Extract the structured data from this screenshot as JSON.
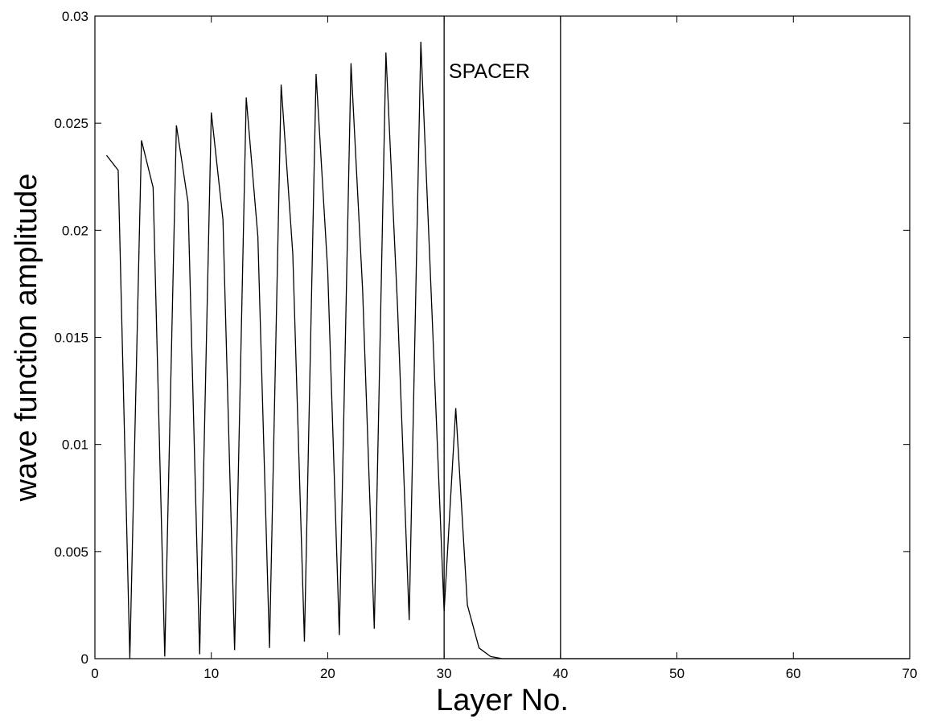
{
  "chart_data": {
    "type": "line",
    "title": "",
    "xlabel": "Layer No.",
    "ylabel": "wave function amplitude",
    "xlim": [
      0,
      70
    ],
    "ylim": [
      0,
      0.03
    ],
    "x_ticks": [
      0,
      10,
      20,
      30,
      40,
      50,
      60,
      70
    ],
    "y_ticks": [
      0,
      0.005,
      0.01,
      0.015,
      0.02,
      0.025,
      0.03
    ],
    "x_tick_labels": [
      "0",
      "10",
      "20",
      "30",
      "40",
      "50",
      "60",
      "70"
    ],
    "y_tick_labels": [
      "0",
      "0.005",
      "0.01",
      "0.015",
      "0.02",
      "0.025",
      "0.03"
    ],
    "grid": false,
    "legend": "none",
    "vertical_lines": [
      30,
      40
    ],
    "annotations": [
      {
        "text": "SPACER",
        "x": 30.4,
        "y": 0.0271
      }
    ],
    "series": [
      {
        "color": "#000000",
        "x": [
          1,
          2,
          3,
          4,
          5,
          6,
          7,
          8,
          9,
          10,
          11,
          12,
          13,
          14,
          15,
          16,
          17,
          18,
          19,
          20,
          21,
          22,
          23,
          24,
          25,
          26,
          27,
          28,
          29,
          30,
          31,
          32,
          33,
          34,
          35,
          36,
          37,
          38,
          39,
          40,
          41,
          42,
          43,
          44,
          45,
          46,
          47,
          48,
          49,
          50,
          51,
          52,
          53,
          54,
          55,
          56,
          57,
          58,
          59,
          60,
          61,
          62,
          63,
          64,
          65,
          66,
          67,
          68,
          69,
          70
        ],
        "y": [
          0.0235,
          0.0228,
          0.0,
          0.0242,
          0.022,
          0.0001,
          0.0249,
          0.0213,
          0.0002,
          0.0255,
          0.0205,
          0.0004,
          0.0262,
          0.0197,
          0.0005,
          0.0268,
          0.0189,
          0.0008,
          0.0273,
          0.0181,
          0.0011,
          0.0278,
          0.0172,
          0.0014,
          0.0283,
          0.0164,
          0.0018,
          0.0288,
          0.0156,
          0.0022,
          0.0117,
          0.0025,
          0.0005,
          0.0001,
          0.0,
          0.0,
          0.0,
          0.0,
          0.0,
          0.0,
          0.0,
          0.0,
          0.0,
          0.0,
          0.0,
          0.0,
          0.0,
          0.0,
          0.0,
          0.0,
          0.0,
          0.0,
          0.0,
          0.0,
          0.0,
          0.0,
          0.0,
          0.0,
          0.0,
          0.0,
          0.0,
          0.0,
          0.0,
          0.0,
          0.0,
          0.0,
          0.0,
          0.0,
          0.0,
          0.0
        ]
      }
    ]
  }
}
